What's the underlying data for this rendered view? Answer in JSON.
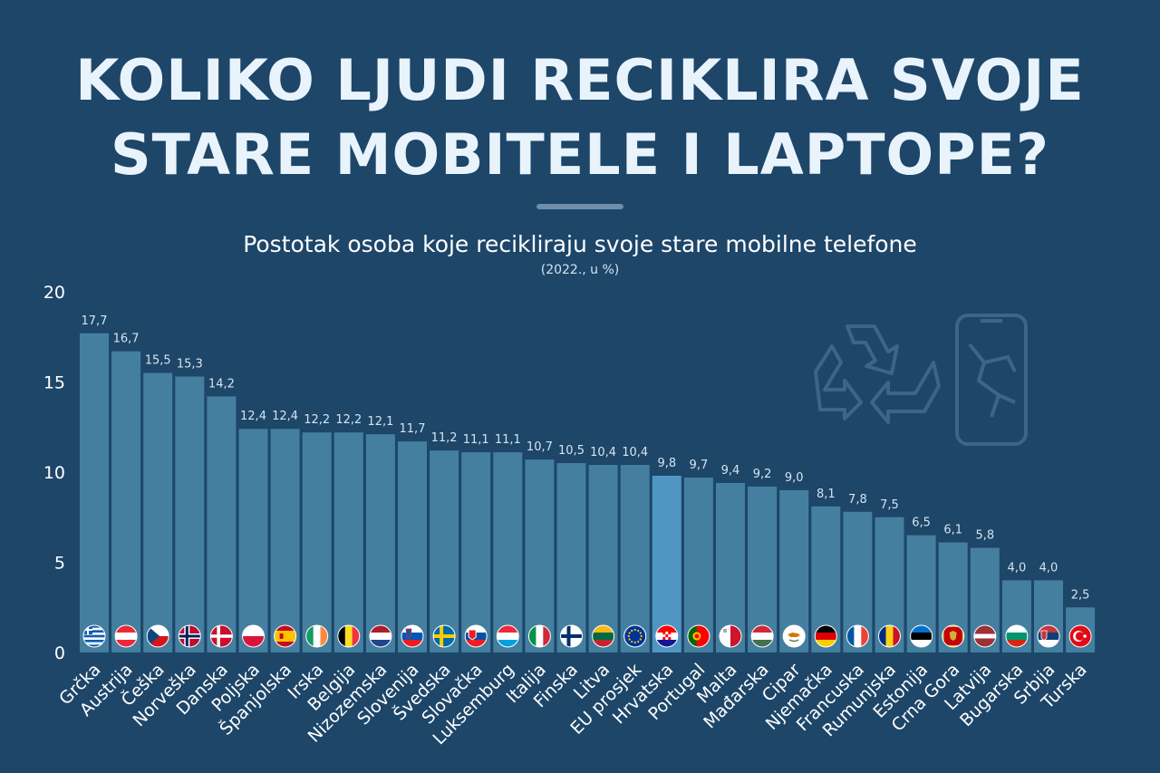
{
  "title": {
    "line1": "KOLIKO LJUDI RECIKLIRA SVOJE",
    "line2": "STARE MOBITELE I LAPTOPE?"
  },
  "subtitle": "Postotak osoba koje recikliraju svoje stare mobilne telefone",
  "subnote": "(2022., u %)",
  "colors": {
    "background": "#1d4669",
    "bar": "#447fa0",
    "highlight_bar": "#4f97c2",
    "label": "#d6e3ee"
  },
  "decoration": {
    "icons": [
      "recycle-icon",
      "broken-phone-icon"
    ]
  },
  "chart_data": {
    "type": "bar",
    "ylim": [
      0,
      20
    ],
    "yticks": [
      "0",
      "5",
      "10",
      "15",
      "20"
    ],
    "grid": false,
    "highlight": "Hrvatska",
    "categories": [
      "Grčka",
      "Austrija",
      "Češka",
      "Norveška",
      "Danska",
      "Poljska",
      "Španjolska",
      "Irska",
      "Belgija",
      "Nizozemska",
      "Slovenija",
      "Švedska",
      "Slovačka",
      "Luksemburg",
      "Italija",
      "Finska",
      "Litva",
      "EU prosjek",
      "Hrvatska",
      "Portugal",
      "Malta",
      "Mađarska",
      "Cipar",
      "Njemačka",
      "Francuska",
      "Rumunjska",
      "Estonija",
      "Crna Gora",
      "Latvija",
      "Bugarska",
      "Srbija",
      "Turska"
    ],
    "values": [
      17.7,
      16.7,
      15.5,
      15.3,
      14.2,
      12.4,
      12.4,
      12.2,
      12.2,
      12.1,
      11.7,
      11.2,
      11.1,
      11.1,
      10.7,
      10.5,
      10.4,
      10.4,
      9.8,
      9.7,
      9.4,
      9.2,
      9.0,
      8.1,
      7.8,
      7.5,
      6.5,
      6.1,
      5.8,
      4.0,
      4.0,
      2.5
    ],
    "value_labels": [
      "17,7",
      "16,7",
      "15,5",
      "15,3",
      "14,2",
      "12,4",
      "12,4",
      "12,2",
      "12,2",
      "12,1",
      "11,7",
      "11,2",
      "11,1",
      "11,1",
      "10,7",
      "10,5",
      "10,4",
      "10,4",
      "9,8",
      "9,7",
      "9,4",
      "9,2",
      "9,0",
      "8,1",
      "7,8",
      "7,5",
      "6,5",
      "6,1",
      "5,8",
      "4,0",
      "4,0",
      "2,5"
    ],
    "flags": [
      "gr",
      "at",
      "cz",
      "no",
      "dk",
      "pl",
      "es",
      "ie",
      "be",
      "nl",
      "si",
      "se",
      "sk",
      "lu",
      "it",
      "fi",
      "lt",
      "eu",
      "hr",
      "pt",
      "mt",
      "hu",
      "cy",
      "de",
      "fr",
      "ro",
      "ee",
      "me",
      "lv",
      "bg",
      "rs",
      "tr"
    ]
  }
}
